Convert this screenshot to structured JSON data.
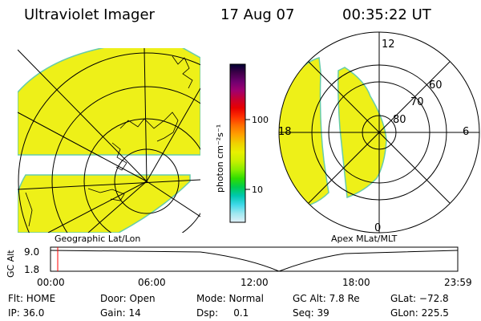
{
  "header": {
    "title": "Ultraviolet Imager",
    "date": "17 Aug 07",
    "time": "00:35:22 UT"
  },
  "geo_map": {
    "label": "Geographic Lat/Lon",
    "fill_color": "#eef018",
    "edge_color": "#66ccaa"
  },
  "polar_plot": {
    "label": "Apex MLat/MLT",
    "mlt_labels": [
      "12",
      "18",
      "6",
      "0"
    ],
    "lat_labels": [
      "60",
      "70",
      "80"
    ]
  },
  "colorbar": {
    "unit_label": "photon cm⁻²s⁻¹",
    "ticks": [
      "100",
      "10"
    ],
    "colors": [
      "#000030",
      "#40004a",
      "#700070",
      "#a00070",
      "#c80030",
      "#e80000",
      "#ff3000",
      "#ff7000",
      "#ffa000",
      "#f0d000",
      "#e8f000",
      "#c8f000",
      "#88ee00",
      "#30dd00",
      "#00cc50",
      "#00c8b0",
      "#40d8e8",
      "#a0e8f0",
      "#e0f0f8"
    ]
  },
  "altitude_timeline": {
    "axis_label": "GC Alt",
    "y_ticks": [
      "9.0",
      "1.8"
    ],
    "x_ticks": [
      "00:00",
      "06:00",
      "12:00",
      "18:00",
      "23:59"
    ],
    "current_time_marker_color": "#ff0000"
  },
  "status": {
    "flt": "Flt: HOME",
    "door": "Door: Open",
    "mode": "Mode: Normal",
    "gc_alt": "GC Alt: 7.8 Re",
    "glat": "GLat: −72.8",
    "ip": "IP: 36.0",
    "gain": "Gain: 14",
    "dsp": "Dsp:     0.1",
    "seq": "Seq: 39",
    "glon": "GLon: 225.5"
  }
}
